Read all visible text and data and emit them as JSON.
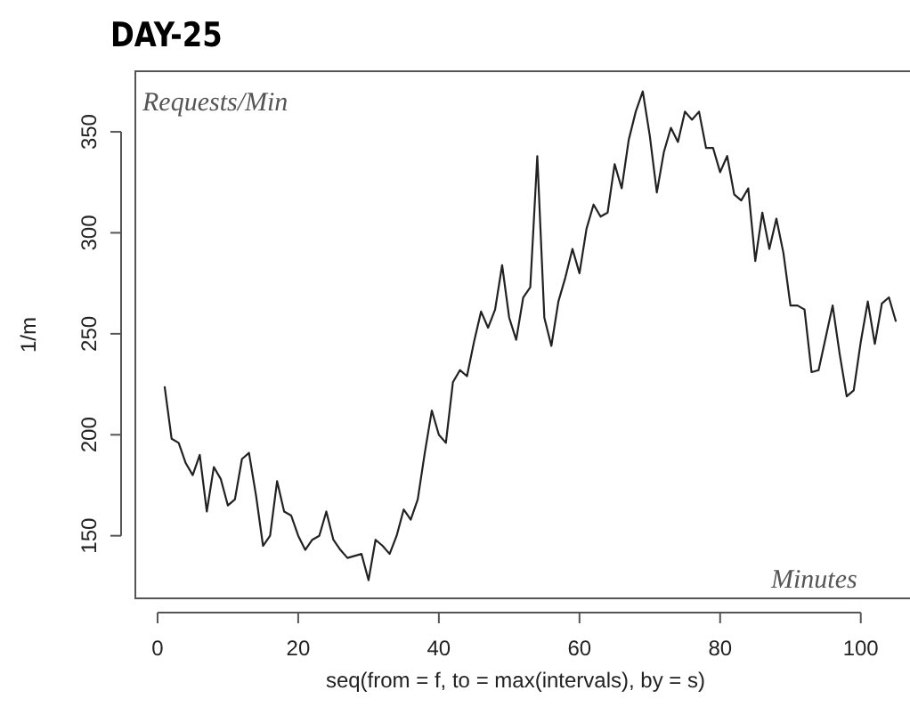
{
  "chart_data": {
    "type": "line",
    "title": "DAY-25",
    "xlabel": "seq(from = f, to = max(intervals), by = s)",
    "ylabel": "1/m",
    "annotations": [
      "Requests/Min",
      "Minutes"
    ],
    "x": [
      1,
      2,
      3,
      4,
      5,
      6,
      7,
      8,
      9,
      10,
      11,
      12,
      13,
      14,
      15,
      16,
      17,
      18,
      19,
      20,
      21,
      22,
      23,
      24,
      25,
      26,
      27,
      28,
      29,
      30,
      31,
      32,
      33,
      34,
      35,
      36,
      37,
      38,
      39,
      40,
      41,
      42,
      43,
      44,
      45,
      46,
      47,
      48,
      49,
      50,
      51,
      52,
      53,
      54,
      55,
      56,
      57,
      58,
      59,
      60,
      61,
      62,
      63,
      64,
      65,
      66,
      67,
      68,
      69,
      70,
      71,
      72,
      73,
      74,
      75,
      76,
      77,
      78,
      79,
      80,
      81,
      82,
      83,
      84,
      85,
      86,
      87,
      88,
      89,
      90,
      91,
      92,
      93,
      94,
      95,
      96,
      97,
      98,
      99,
      100,
      101,
      102,
      103,
      104,
      105
    ],
    "series": [
      {
        "color": "#222222",
        "values": [
          224,
          198,
          196,
          186,
          180,
          190,
          162,
          184,
          178,
          165,
          168,
          188,
          191,
          170,
          145,
          150,
          177,
          162,
          160,
          150,
          143,
          148,
          150,
          162,
          148,
          143,
          139,
          140,
          141,
          128,
          148,
          145,
          141,
          150,
          163,
          158,
          168,
          191,
          212,
          200,
          196,
          226,
          232,
          229,
          246,
          261,
          253,
          262,
          284,
          258,
          247,
          268,
          273,
          338,
          258,
          244,
          266,
          278,
          292,
          280,
          302,
          314,
          308,
          310,
          334,
          322,
          346,
          360,
          370,
          348,
          320,
          340,
          352,
          345,
          360,
          356,
          360,
          342,
          342,
          330,
          338,
          319,
          316,
          322,
          286,
          310,
          292,
          307,
          290,
          264,
          264,
          262,
          231,
          232,
          248,
          264,
          240,
          219,
          222,
          246,
          266,
          245,
          265,
          268,
          256
        ]
      }
    ],
    "xlim": [
      -3.16,
      107
    ],
    "ylim": [
      119,
      380
    ],
    "xticks": [
      0,
      20,
      40,
      60,
      80,
      100
    ],
    "yticks": [
      150,
      200,
      250,
      300,
      350
    ],
    "grid": false,
    "marker": "none",
    "line_style": "solid"
  }
}
